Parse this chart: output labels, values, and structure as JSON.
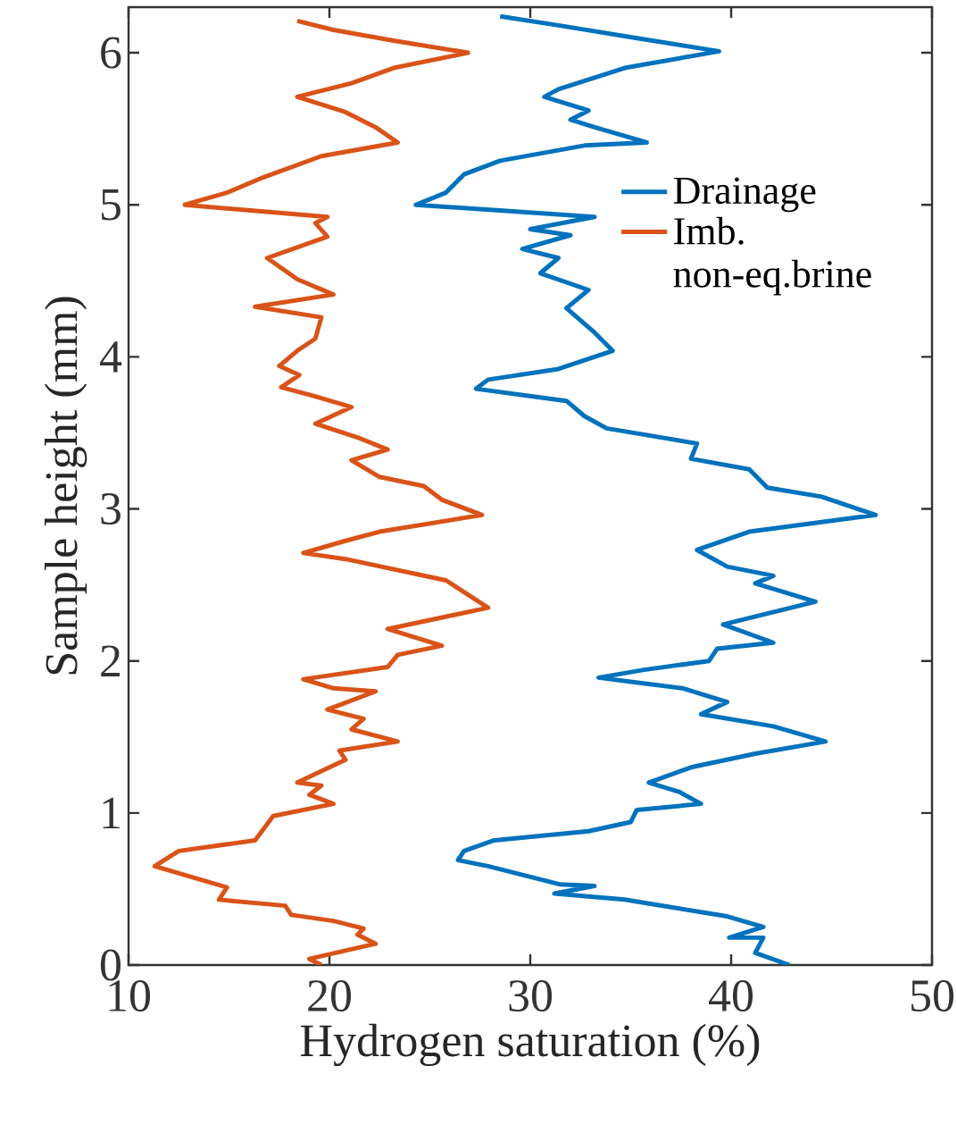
{
  "chart_data": {
    "type": "line",
    "xlabel": "Hydrogen saturation (%)",
    "ylabel": "Sample height (mm)",
    "xlim": [
      10,
      50
    ],
    "ylim": [
      0,
      6.3
    ],
    "xticks": [
      10,
      20,
      30,
      40,
      50
    ],
    "yticks": [
      0,
      1,
      2,
      3,
      4,
      5,
      6
    ],
    "legend": "top right",
    "grid": false,
    "marker": "none",
    "line_style": "solid",
    "series": [
      {
        "name": "Drainage",
        "color": "#0072bd",
        "x": [
          42.9,
          41.2,
          41.6,
          39.9,
          41.6,
          39.8,
          34.7,
          31.2,
          33.2,
          31.5,
          27.9,
          26.4,
          26.7,
          28.2,
          32.9,
          35.0,
          35.3,
          38.5,
          37.4,
          35.9,
          38.0,
          41.2,
          44.7,
          42.1,
          38.5,
          39.8,
          37.6,
          33.4,
          35.6,
          38.9,
          39.3,
          42.1,
          39.6,
          44.2,
          41.2,
          42.1,
          39.8,
          38.3,
          40.9,
          47.2,
          44.5,
          41.8,
          40.9,
          38.0,
          38.3,
          33.8,
          32.7,
          31.8,
          27.3,
          27.9,
          31.4,
          34.1,
          33.2,
          31.8,
          32.9,
          30.5,
          31.4,
          29.6,
          32.0,
          30.0,
          33.2,
          24.3,
          25.8,
          26.7,
          28.5,
          32.7,
          35.8,
          33.2,
          32.0,
          32.9,
          30.7,
          31.4,
          34.7,
          39.4,
          35.6,
          31.4,
          28.5
        ],
        "values": [
          0,
          0.08,
          0.18,
          0.18,
          0.25,
          0.32,
          0.43,
          0.47,
          0.52,
          0.53,
          0.65,
          0.69,
          0.75,
          0.82,
          0.88,
          0.94,
          1.02,
          1.06,
          1.14,
          1.2,
          1.3,
          1.39,
          1.47,
          1.57,
          1.65,
          1.73,
          1.82,
          1.89,
          1.94,
          2.0,
          2.08,
          2.12,
          2.24,
          2.39,
          2.51,
          2.56,
          2.62,
          2.73,
          2.85,
          2.96,
          3.08,
          3.14,
          3.26,
          3.33,
          3.43,
          3.53,
          3.61,
          3.71,
          3.79,
          3.85,
          3.92,
          4.04,
          4.16,
          4.32,
          4.44,
          4.55,
          4.65,
          4.71,
          4.8,
          4.84,
          4.92,
          5.0,
          5.08,
          5.2,
          5.29,
          5.39,
          5.41,
          5.51,
          5.56,
          5.62,
          5.71,
          5.76,
          5.9,
          6.01,
          6.09,
          6.18,
          6.24
        ]
      },
      {
        "name": "Imb. non-eq.brine",
        "color": "#d95319",
        "x": [
          19.6,
          19.0,
          22.3,
          21.4,
          21.7,
          20.2,
          18.1,
          17.8,
          14.5,
          14.9,
          11.3,
          12.5,
          16.3,
          17.2,
          20.2,
          19.0,
          19.6,
          18.4,
          20.8,
          20.5,
          23.4,
          21.1,
          21.7,
          19.9,
          22.3,
          20.2,
          18.7,
          22.9,
          23.4,
          25.6,
          22.9,
          27.9,
          25.8,
          20.8,
          18.7,
          20.8,
          22.5,
          27.6,
          25.6,
          24.7,
          22.5,
          21.1,
          22.9,
          21.4,
          19.3,
          21.1,
          19.3,
          17.6,
          18.5,
          17.5,
          18.4,
          19.3,
          19.6,
          16.3,
          20.2,
          18.4,
          16.9,
          19.9,
          19.3,
          19.9,
          12.8,
          14.9,
          16.7,
          19.6,
          23.4,
          22.3,
          20.8,
          18.4,
          21.1,
          23.2,
          26.9,
          23.2,
          20.2,
          18.4
        ],
        "values": [
          0,
          0.04,
          0.14,
          0.2,
          0.24,
          0.29,
          0.33,
          0.39,
          0.43,
          0.51,
          0.65,
          0.75,
          0.82,
          0.98,
          1.06,
          1.12,
          1.18,
          1.2,
          1.35,
          1.41,
          1.47,
          1.55,
          1.62,
          1.68,
          1.8,
          1.82,
          1.88,
          1.96,
          2.04,
          2.1,
          2.21,
          2.35,
          2.53,
          2.67,
          2.71,
          2.79,
          2.85,
          2.96,
          3.06,
          3.15,
          3.21,
          3.32,
          3.39,
          3.47,
          3.56,
          3.67,
          3.74,
          3.8,
          3.88,
          3.94,
          4.04,
          4.12,
          4.26,
          4.33,
          4.41,
          4.51,
          4.65,
          4.79,
          4.88,
          4.92,
          5.0,
          5.08,
          5.18,
          5.32,
          5.41,
          5.51,
          5.61,
          5.71,
          5.8,
          5.9,
          6.0,
          6.08,
          6.15,
          6.21
        ]
      }
    ]
  }
}
